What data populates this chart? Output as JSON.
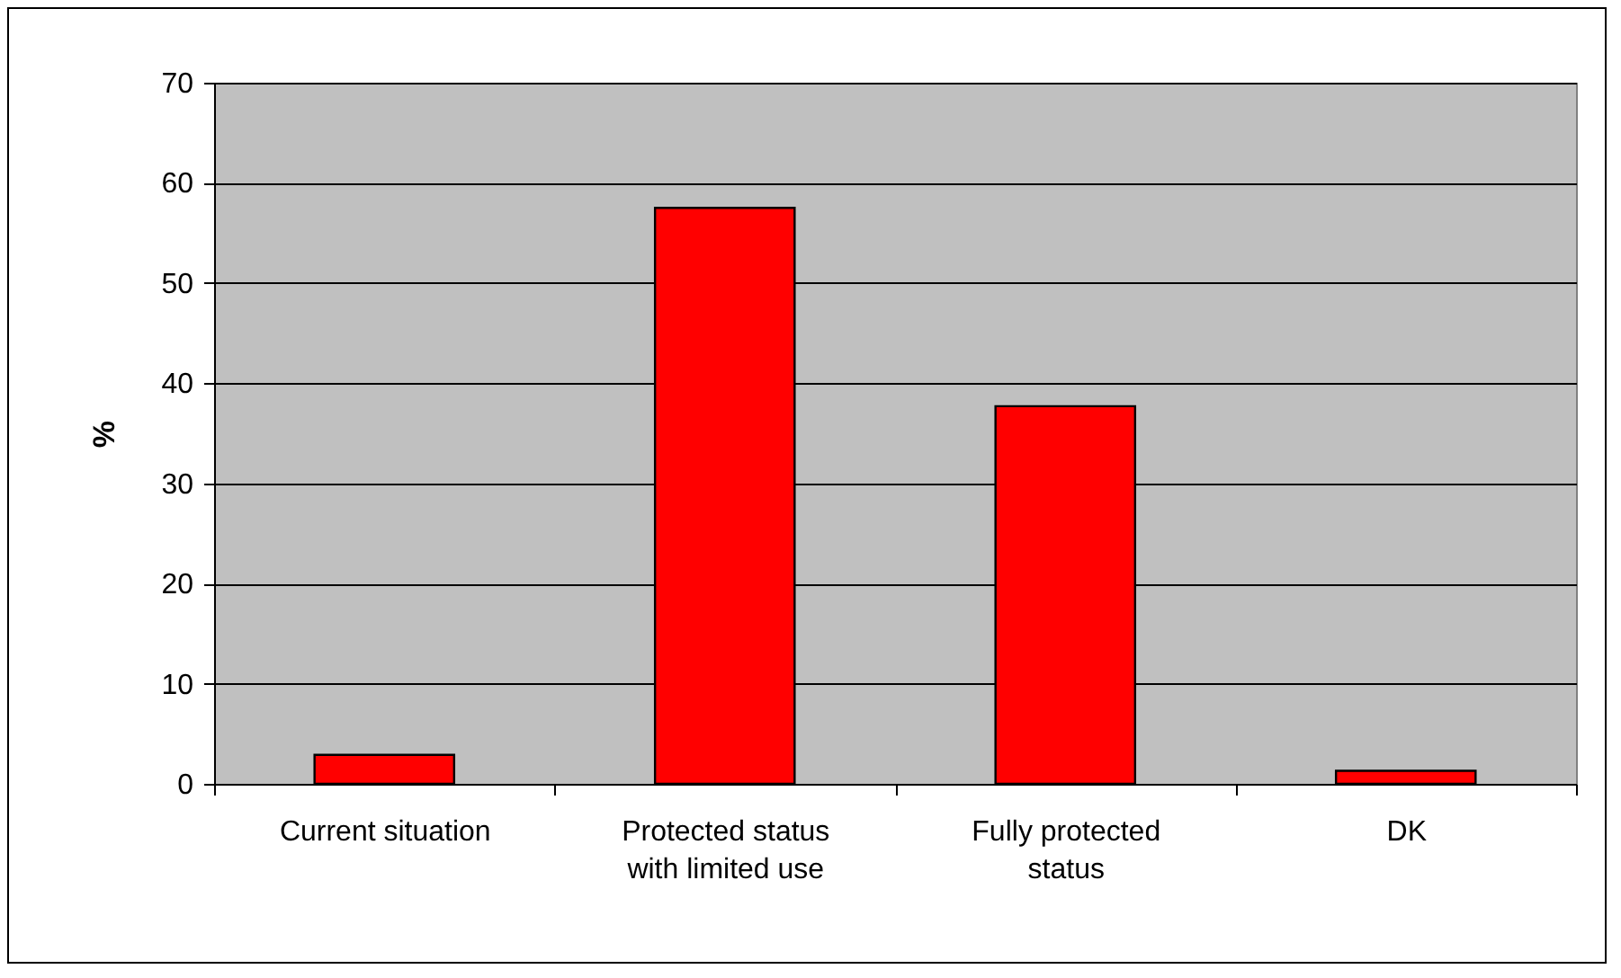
{
  "chart_data": {
    "type": "bar",
    "ylabel": "%",
    "categories": [
      "Current situation",
      "Protected status with limited use",
      "Fully protected status",
      "DK"
    ],
    "values": [
      2.9,
      57.5,
      37.7,
      1.3
    ],
    "color": "#ff0000",
    "ylim": [
      0,
      70
    ],
    "yticks": [
      0,
      10,
      20,
      30,
      40,
      50,
      60,
      70
    ],
    "grid": "y"
  }
}
